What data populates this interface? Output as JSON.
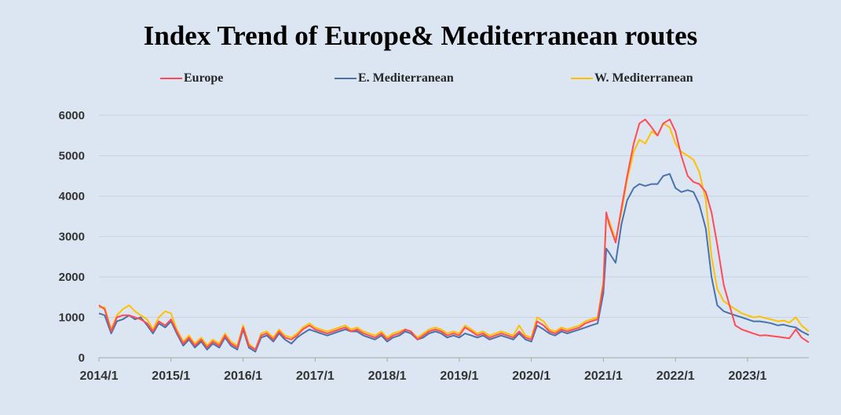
{
  "chart_data": {
    "type": "line",
    "title": "Index Trend of Europe& Mediterranean routes",
    "xlabel": "",
    "ylabel": "",
    "ylim": [
      0,
      6000
    ],
    "yticks": [
      "0",
      "1000",
      "2000",
      "3000",
      "4000",
      "5000",
      "6000"
    ],
    "xticks": [
      "2014/1",
      "2015/1",
      "2016/1",
      "2017/1",
      "2018/1",
      "2019/1",
      "2020/1",
      "2021/1",
      "2022/1",
      "2023/1"
    ],
    "xlim": [
      2014.0,
      2023.85
    ],
    "grid": true,
    "legend_position": "top",
    "x": [
      2014.0,
      2014.08,
      2014.17,
      2014.25,
      2014.33,
      2014.42,
      2014.5,
      2014.58,
      2014.67,
      2014.75,
      2014.83,
      2014.92,
      2015.0,
      2015.08,
      2015.17,
      2015.25,
      2015.33,
      2015.42,
      2015.5,
      2015.58,
      2015.67,
      2015.75,
      2015.83,
      2015.92,
      2016.0,
      2016.08,
      2016.17,
      2016.25,
      2016.33,
      2016.42,
      2016.5,
      2016.58,
      2016.67,
      2016.75,
      2016.83,
      2016.92,
      2017.0,
      2017.08,
      2017.17,
      2017.25,
      2017.33,
      2017.42,
      2017.5,
      2017.58,
      2017.67,
      2017.75,
      2017.83,
      2017.92,
      2018.0,
      2018.08,
      2018.17,
      2018.25,
      2018.33,
      2018.42,
      2018.5,
      2018.58,
      2018.67,
      2018.75,
      2018.83,
      2018.92,
      2019.0,
      2019.08,
      2019.17,
      2019.25,
      2019.33,
      2019.42,
      2019.5,
      2019.58,
      2019.67,
      2019.75,
      2019.83,
      2019.92,
      2020.0,
      2020.08,
      2020.17,
      2020.25,
      2020.33,
      2020.42,
      2020.5,
      2020.58,
      2020.67,
      2020.75,
      2020.83,
      2020.92,
      2021.0,
      2021.04,
      2021.08,
      2021.17,
      2021.25,
      2021.33,
      2021.42,
      2021.5,
      2021.58,
      2021.67,
      2021.75,
      2021.83,
      2021.92,
      2022.0,
      2022.08,
      2022.17,
      2022.25,
      2022.33,
      2022.42,
      2022.5,
      2022.58,
      2022.67,
      2022.75,
      2022.83,
      2022.92,
      2023.0,
      2023.08,
      2023.17,
      2023.25,
      2023.33,
      2023.42,
      2023.5,
      2023.58,
      2023.67,
      2023.75,
      2023.85
    ],
    "series": [
      {
        "name": "Europe",
        "color": "#ff4b55",
        "values": [
          1300,
          1200,
          650,
          1000,
          1050,
          1050,
          1000,
          950,
          850,
          650,
          900,
          800,
          950,
          650,
          350,
          500,
          300,
          450,
          250,
          400,
          300,
          550,
          350,
          250,
          750,
          300,
          200,
          550,
          600,
          450,
          650,
          500,
          450,
          550,
          700,
          800,
          700,
          650,
          600,
          650,
          700,
          750,
          650,
          700,
          600,
          550,
          500,
          600,
          450,
          550,
          600,
          700,
          650,
          450,
          550,
          650,
          700,
          650,
          550,
          600,
          550,
          750,
          650,
          550,
          600,
          500,
          550,
          600,
          550,
          500,
          650,
          500,
          450,
          900,
          800,
          650,
          600,
          700,
          650,
          700,
          750,
          850,
          900,
          950,
          1800,
          3600,
          3300,
          2850,
          3700,
          4500,
          5300,
          5800,
          5900,
          5700,
          5500,
          5800,
          5900,
          5600,
          5000,
          4500,
          4350,
          4300,
          4100,
          3600,
          2800,
          1800,
          1300,
          800,
          700,
          650,
          600,
          550,
          560,
          540,
          520,
          500,
          480,
          700,
          500,
          380
        ]
      },
      {
        "name": "E. Mediterranean",
        "color": "#4a72aa",
        "values": [
          1100,
          1050,
          600,
          900,
          950,
          1050,
          950,
          1000,
          800,
          600,
          850,
          750,
          900,
          600,
          300,
          450,
          250,
          400,
          200,
          350,
          250,
          500,
          300,
          200,
          700,
          250,
          150,
          500,
          550,
          400,
          600,
          450,
          350,
          500,
          600,
          700,
          650,
          600,
          550,
          600,
          650,
          700,
          650,
          650,
          550,
          500,
          450,
          550,
          400,
          500,
          550,
          650,
          600,
          450,
          500,
          600,
          650,
          600,
          500,
          550,
          500,
          600,
          550,
          500,
          550,
          450,
          500,
          550,
          500,
          450,
          600,
          450,
          400,
          800,
          700,
          600,
          550,
          650,
          600,
          650,
          700,
          750,
          800,
          850,
          1600,
          2700,
          2600,
          2350,
          3300,
          3900,
          4200,
          4300,
          4250,
          4300,
          4300,
          4500,
          4550,
          4200,
          4100,
          4150,
          4100,
          3800,
          3200,
          2000,
          1300,
          1150,
          1100,
          1050,
          1000,
          950,
          900,
          900,
          880,
          850,
          800,
          820,
          780,
          750,
          650,
          560
        ]
      },
      {
        "name": "W. Mediterranean",
        "color": "#ffc000",
        "values": [
          1250,
          1250,
          700,
          1050,
          1200,
          1300,
          1150,
          1050,
          950,
          700,
          1000,
          1150,
          1100,
          700,
          400,
          550,
          350,
          500,
          300,
          450,
          350,
          600,
          400,
          300,
          800,
          350,
          200,
          600,
          650,
          500,
          700,
          550,
          500,
          600,
          750,
          850,
          750,
          700,
          650,
          700,
          750,
          800,
          700,
          750,
          650,
          600,
          550,
          650,
          500,
          600,
          650,
          700,
          650,
          500,
          600,
          700,
          750,
          700,
          600,
          650,
          600,
          800,
          700,
          600,
          650,
          550,
          600,
          650,
          600,
          550,
          800,
          550,
          500,
          1000,
          900,
          700,
          650,
          750,
          700,
          750,
          800,
          900,
          950,
          1000,
          1900,
          3500,
          3400,
          2900,
          3600,
          4400,
          5100,
          5400,
          5300,
          5600,
          5500,
          5800,
          5700,
          5300,
          5100,
          5000,
          4900,
          4600,
          3900,
          2500,
          1700,
          1400,
          1300,
          1200,
          1100,
          1050,
          1000,
          1020,
          980,
          950,
          900,
          920,
          870,
          1000,
          800,
          650
        ]
      }
    ]
  }
}
